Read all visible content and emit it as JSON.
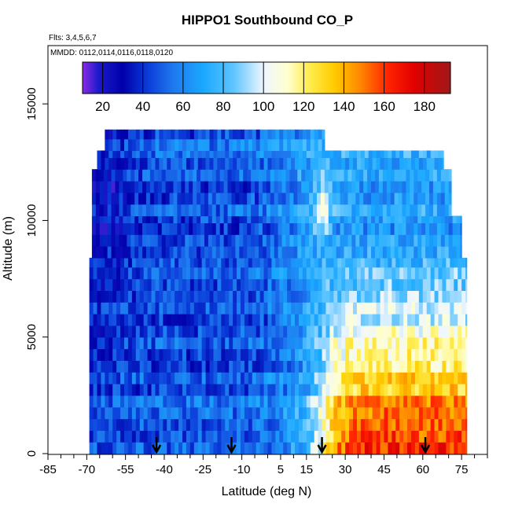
{
  "chart_data": {
    "type": "heatmap",
    "title": "HIPPO1 Southbound CO_P",
    "subtitles": [
      "Flts: 3,4,5,6,7",
      "MMDD: 0112,0114,0116,0118,0120"
    ],
    "xlabel": "Latitude (deg N)",
    "ylabel": "Altitude (m)",
    "xlim": [
      -85,
      85
    ],
    "ylim": [
      0,
      17500
    ],
    "x_tick_labels": [
      {
        "value": -85,
        "label": "-85"
      },
      {
        "value": -70,
        "label": "-70"
      },
      {
        "value": -55,
        "label": "-55"
      },
      {
        "value": -40,
        "label": "-40"
      },
      {
        "value": -25,
        "label": "-25"
      },
      {
        "value": -10,
        "label": "-10"
      },
      {
        "value": 5,
        "label": "5"
      },
      {
        "value": 15,
        "label": "15"
      },
      {
        "value": 30,
        "label": "30"
      },
      {
        "value": 45,
        "label": "45"
      },
      {
        "value": 60,
        "label": "60"
      },
      {
        "value": 75,
        "label": "75"
      }
    ],
    "x_minor_ticks": [
      -80,
      -75,
      -65,
      -60,
      -50,
      -45,
      -35,
      -30,
      -20,
      -15,
      -5,
      0,
      10,
      20,
      25,
      35,
      40,
      50,
      55,
      65,
      70,
      80,
      85
    ],
    "y_ticks": [
      0,
      5000,
      10000,
      15000
    ],
    "colorbar": {
      "range": [
        10,
        193
      ],
      "ticks": [
        20,
        40,
        60,
        80,
        100,
        120,
        140,
        160,
        180
      ],
      "stops": [
        {
          "v": 10,
          "c": "#8a2be2"
        },
        {
          "v": 18,
          "c": "#1a1acc"
        },
        {
          "v": 30,
          "c": "#0000aa"
        },
        {
          "v": 42,
          "c": "#0a3ad8"
        },
        {
          "v": 55,
          "c": "#1e78ee"
        },
        {
          "v": 70,
          "c": "#1aa8ff"
        },
        {
          "v": 85,
          "c": "#5ec4ff"
        },
        {
          "v": 100,
          "c": "#eef6ff"
        },
        {
          "v": 112,
          "c": "#ffffd0"
        },
        {
          "v": 122,
          "c": "#ffee55"
        },
        {
          "v": 135,
          "c": "#ffcc00"
        },
        {
          "v": 148,
          "c": "#ff8800"
        },
        {
          "v": 162,
          "c": "#ff2200"
        },
        {
          "v": 175,
          "c": "#e00000"
        },
        {
          "v": 193,
          "c": "#a01818"
        }
      ]
    },
    "arrow_latitudes": [
      -43,
      -14,
      21,
      61
    ],
    "coverage": [
      {
        "lat_min": -69,
        "lat_max": 77,
        "alt_min": 0,
        "alt_max": 8400
      },
      {
        "lat_min": -68,
        "lat_max": 75,
        "alt_min": 8400,
        "alt_max": 10200
      },
      {
        "lat_min": -68,
        "lat_max": 71,
        "alt_min": 10200,
        "alt_max": 12200
      },
      {
        "lat_min": -66,
        "lat_max": 68,
        "alt_min": 12200,
        "alt_max": 13000
      },
      {
        "lat_min": -63,
        "lat_max": 22,
        "alt_min": 13000,
        "alt_max": 13900
      }
    ]
  }
}
